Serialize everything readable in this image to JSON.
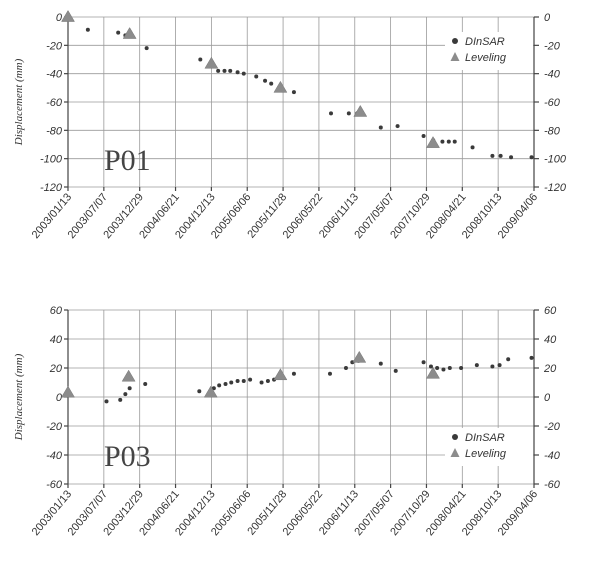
{
  "colors": {
    "dinsar": "#3a3a3a",
    "leveling": "#8c8c8c",
    "grid": "#9a9a9a"
  },
  "chart_data": [
    {
      "type": "scatter",
      "label": "P01",
      "ylabel": "Displacement (mm)",
      "ylim": [
        -120,
        0
      ],
      "yticks": [
        "0",
        "-20",
        "-40",
        "-60",
        "-80",
        "-100",
        "-120"
      ],
      "yticks_right": [
        "0",
        "-20",
        "-40",
        "-60",
        "-80",
        "-100",
        "-120"
      ],
      "xticks": [
        "2003/01/13",
        "2003/07/07",
        "2003/12/29",
        "2004/06/21",
        "2004/12/13",
        "2005/06/06",
        "2005/11/28",
        "2006/05/22",
        "2006/11/13",
        "2007/05/07",
        "2007/10/29",
        "2008/04/21",
        "2008/10/13",
        "2009/04/06"
      ],
      "grid": true,
      "legend_position": "top-right",
      "series": [
        {
          "name": "DInSAR",
          "marker": "circle",
          "x": [
            "2003/01/20",
            "2003/04/20",
            "2003/09/15",
            "2003/10/20",
            "2003/11/15",
            "2004/02/01",
            "2004/10/20",
            "2004/12/20",
            "2005/01/15",
            "2005/02/15",
            "2005/03/15",
            "2005/04/20",
            "2005/05/20",
            "2005/07/20",
            "2005/09/01",
            "2005/10/01",
            "2005/11/15",
            "2006/01/20",
            "2006/07/20",
            "2006/10/15",
            "2006/11/25",
            "2007/03/20",
            "2007/06/10",
            "2007/10/15",
            "2007/12/01",
            "2008/01/15",
            "2008/02/15",
            "2008/03/15",
            "2008/06/10",
            "2008/09/15",
            "2008/10/25",
            "2008/12/15",
            "2009/03/25"
          ],
          "y": [
            0,
            -9,
            -11,
            -13,
            -12,
            -22,
            -30,
            -34,
            -38,
            -38,
            -38,
            -39,
            -40,
            -42,
            -45,
            -47,
            -50,
            -53,
            -68,
            -68,
            -68,
            -78,
            -77,
            -84,
            -87,
            -88,
            -88,
            -88,
            -92,
            -98,
            -98,
            -99,
            -99
          ]
        },
        {
          "name": "Leveling",
          "marker": "triangle",
          "x": [
            "2003/01/13",
            "2003/11/10",
            "2004/12/13",
            "2005/11/15",
            "2006/12/10",
            "2007/11/30"
          ],
          "y": [
            0,
            -12,
            -33,
            -50,
            -67,
            -89
          ]
        }
      ]
    },
    {
      "type": "scatter",
      "label": "P03",
      "ylabel": "Displacement (mm)",
      "ylim": [
        -60,
        60
      ],
      "yticks": [
        "60",
        "40",
        "20",
        "0",
        "-20",
        "-40",
        "-60"
      ],
      "yticks_right": [
        "60",
        "40",
        "20",
        "0",
        "-20",
        "-40",
        "-60"
      ],
      "xticks": [
        "2003/01/13",
        "2003/07/07",
        "2003/12/29",
        "2004/06/21",
        "2004/12/13",
        "2005/06/06",
        "2005/11/28",
        "2006/05/22",
        "2006/11/13",
        "2007/05/07",
        "2007/10/29",
        "2008/04/21",
        "2008/10/13",
        "2009/04/06"
      ],
      "grid": true,
      "legend_position": "bottom-right",
      "series": [
        {
          "name": "DInSAR",
          "marker": "circle",
          "x": [
            "2003/01/20",
            "2003/07/20",
            "2003/09/25",
            "2003/10/20",
            "2003/11/10",
            "2004/01/25",
            "2004/10/15",
            "2004/12/25",
            "2005/01/20",
            "2005/02/20",
            "2005/03/20",
            "2005/04/20",
            "2005/05/20",
            "2005/06/20",
            "2005/08/15",
            "2005/09/15",
            "2005/10/15",
            "2005/11/20",
            "2006/01/20",
            "2006/07/15",
            "2006/10/01",
            "2006/11/01",
            "2006/12/01",
            "2007/03/20",
            "2007/06/01",
            "2007/10/15",
            "2007/11/20",
            "2007/12/20",
            "2008/01/20",
            "2008/02/20",
            "2008/04/15",
            "2008/07/01",
            "2008/09/15",
            "2008/10/20",
            "2008/12/01",
            "2009/03/25"
          ],
          "y": [
            2,
            -3,
            -2,
            2,
            6,
            9,
            4,
            6,
            8,
            9,
            10,
            11,
            11,
            12,
            10,
            11,
            12,
            14,
            16,
            16,
            20,
            24,
            25,
            23,
            18,
            24,
            21,
            20,
            19,
            20,
            20,
            22,
            21,
            22,
            26,
            27
          ]
        },
        {
          "name": "Leveling",
          "marker": "triangle",
          "x": [
            "2003/01/13",
            "2003/11/05",
            "2004/12/10",
            "2005/11/15",
            "2006/12/05",
            "2007/11/30"
          ],
          "y": [
            3,
            14,
            3,
            15,
            27,
            16
          ]
        }
      ]
    }
  ]
}
